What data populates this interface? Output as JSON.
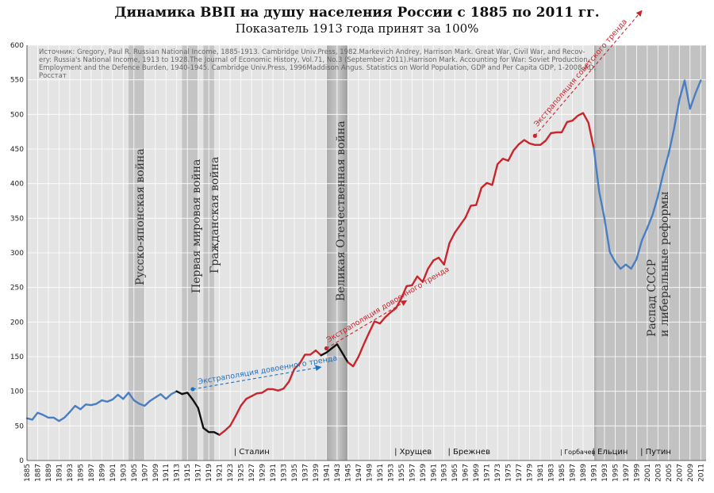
{
  "title": "Динамика ВВП на душу населения России с 1885 по 2011 гг.",
  "subtitle": "Показатель 1913 года принят за 100%",
  "source": {
    "lines": [
      "Источник: Gregory, Paul R. Russian National Income, 1885-1913. Cambridge Univ.Press, 1982.Markevich Andrey, Harrison Mark. Great War, Civil War, and Recov-",
      "ery: Russia's National Income, 1913 to 1928.The Journal of Economic History, Vol.71, No.3 (September 2011).Harrison Mark. Accounting for War: Soviet Production,",
      "Employment and the Defence Burden, 1940-1945. Cambridge Univ.Press, 1996Maddison Angus. Statistics on World Population, GDP and Per Capita GDP, 1-2008 AD,",
      "Росстат"
    ]
  },
  "colors": {
    "plot_bg": "#e4e4e4",
    "band": "#c4c4c4",
    "grid": "#ffffff",
    "blue": "#4a7ec2",
    "black": "#111111",
    "red": "#c8252c",
    "trend_blue": "#1f6fc1",
    "trend_red": "#c8252c"
  },
  "chart_data": {
    "type": "line",
    "title": "Динамика ВВП на душу населения России с 1885 по 2011 гг.",
    "subtitle": "Показатель 1913 года принят за 100%",
    "xlim": [
      1885,
      2011
    ],
    "ylim": [
      0,
      600
    ],
    "yticks": [
      0,
      50,
      100,
      150,
      200,
      250,
      300,
      350,
      400,
      450,
      500,
      550,
      600
    ],
    "xticks_start": 1885,
    "xticks_end": 2011,
    "xticks_step": 2,
    "grid": true,
    "series": [
      {
        "color": "#4a7ec2",
        "points": [
          [
            1885,
            61
          ],
          [
            1886,
            59
          ],
          [
            1887,
            69
          ],
          [
            1888,
            66
          ],
          [
            1889,
            62
          ],
          [
            1890,
            62
          ],
          [
            1891,
            57
          ],
          [
            1892,
            62
          ],
          [
            1893,
            70
          ],
          [
            1894,
            79
          ],
          [
            1895,
            74
          ],
          [
            1896,
            81
          ],
          [
            1897,
            80
          ],
          [
            1898,
            82
          ],
          [
            1899,
            87
          ],
          [
            1900,
            85
          ],
          [
            1901,
            88
          ],
          [
            1902,
            95
          ],
          [
            1903,
            89
          ],
          [
            1904,
            98
          ],
          [
            1905,
            87
          ],
          [
            1906,
            82
          ],
          [
            1907,
            79
          ],
          [
            1908,
            86
          ],
          [
            1909,
            91
          ],
          [
            1910,
            96
          ],
          [
            1911,
            89
          ],
          [
            1912,
            96
          ],
          [
            1913,
            100
          ]
        ]
      },
      {
        "color": "#111111",
        "points": [
          [
            1913,
            100
          ],
          [
            1914,
            96
          ],
          [
            1915,
            98
          ],
          [
            1916,
            88
          ],
          [
            1917,
            76
          ],
          [
            1918,
            47
          ],
          [
            1919,
            41
          ],
          [
            1920,
            41
          ],
          [
            1921,
            37
          ]
        ]
      },
      {
        "color": "#c8252c",
        "points": [
          [
            1921,
            37
          ],
          [
            1922,
            43
          ],
          [
            1923,
            50
          ],
          [
            1924,
            64
          ],
          [
            1925,
            79
          ],
          [
            1926,
            89
          ],
          [
            1927,
            93
          ],
          [
            1928,
            97
          ],
          [
            1929,
            98
          ],
          [
            1930,
            103
          ],
          [
            1931,
            103
          ],
          [
            1932,
            101
          ],
          [
            1933,
            104
          ],
          [
            1934,
            114
          ],
          [
            1935,
            132
          ],
          [
            1936,
            140
          ],
          [
            1937,
            153
          ],
          [
            1938,
            153
          ],
          [
            1939,
            159
          ],
          [
            1940,
            152
          ]
        ]
      },
      {
        "color": "#111111",
        "points": [
          [
            1940,
            152
          ],
          [
            1941,
            156
          ],
          [
            1942,
            162
          ],
          [
            1943,
            168
          ],
          [
            1944,
            155
          ],
          [
            1945,
            142
          ]
        ]
      },
      {
        "color": "#c8252c",
        "points": [
          [
            1945,
            142
          ],
          [
            1946,
            136
          ],
          [
            1947,
            150
          ],
          [
            1948,
            168
          ],
          [
            1949,
            185
          ],
          [
            1950,
            201
          ],
          [
            1951,
            198
          ],
          [
            1952,
            207
          ],
          [
            1953,
            214
          ],
          [
            1954,
            220
          ],
          [
            1955,
            234
          ],
          [
            1956,
            252
          ],
          [
            1957,
            253
          ],
          [
            1958,
            266
          ],
          [
            1959,
            258
          ],
          [
            1960,
            277
          ],
          [
            1961,
            289
          ],
          [
            1962,
            293
          ],
          [
            1963,
            283
          ],
          [
            1964,
            314
          ],
          [
            1965,
            329
          ],
          [
            1966,
            340
          ],
          [
            1967,
            351
          ],
          [
            1968,
            368
          ],
          [
            1969,
            369
          ],
          [
            1970,
            394
          ],
          [
            1971,
            401
          ],
          [
            1972,
            398
          ],
          [
            1973,
            428
          ],
          [
            1974,
            436
          ],
          [
            1975,
            433
          ],
          [
            1976,
            448
          ],
          [
            1977,
            457
          ],
          [
            1978,
            463
          ],
          [
            1979,
            458
          ],
          [
            1980,
            456
          ],
          [
            1981,
            456
          ],
          [
            1982,
            462
          ],
          [
            1983,
            473
          ],
          [
            1984,
            474
          ],
          [
            1985,
            474
          ],
          [
            1986,
            489
          ],
          [
            1987,
            491
          ],
          [
            1988,
            498
          ],
          [
            1989,
            502
          ],
          [
            1990,
            488
          ],
          [
            1991,
            451
          ]
        ]
      },
      {
        "color": "#4a7ec2",
        "points": [
          [
            1991,
            451
          ],
          [
            1992,
            389
          ],
          [
            1993,
            350
          ],
          [
            1994,
            301
          ],
          [
            1995,
            287
          ],
          [
            1996,
            277
          ],
          [
            1997,
            283
          ],
          [
            1998,
            277
          ],
          [
            1999,
            291
          ],
          [
            2000,
            318
          ],
          [
            2001,
            336
          ],
          [
            2002,
            355
          ],
          [
            2003,
            382
          ],
          [
            2004,
            415
          ],
          [
            2005,
            443
          ],
          [
            2006,
            479
          ],
          [
            2007,
            521
          ],
          [
            2008,
            549
          ],
          [
            2009,
            508
          ],
          [
            2010,
            530
          ],
          [
            2011,
            549
          ]
        ]
      }
    ],
    "bands": [
      {
        "from": 1904,
        "to": 1907,
        "label": "Русско-японская война"
      },
      {
        "from": 1914,
        "to": 1917,
        "label": "Первая мировая война"
      },
      {
        "from": 1918,
        "to": 1920,
        "label": "Гражданская война"
      },
      {
        "from": 1941,
        "to": 1945,
        "label": "Великая Отечественная война"
      },
      {
        "from": 1991,
        "to": 2012,
        "label_lines": [
          "Распад СССР",
          "и либеральные реформы"
        ]
      }
    ],
    "leaders": [
      {
        "year": 1924,
        "label": "| Сталин"
      },
      {
        "year": 1954,
        "label": "| Хрущев"
      },
      {
        "year": 1964,
        "label": "| Брежнев"
      },
      {
        "year": 1985,
        "label": "| Горбачев"
      },
      {
        "year": 1991,
        "label": "| Ельцин"
      },
      {
        "year": 2000,
        "label": "| Путин"
      }
    ],
    "trends": [
      {
        "label": "Экстраполяция довоенного тренда",
        "color": "#1f6fc1",
        "from": [
          1916,
          103
        ],
        "to": [
          1940,
          135
        ]
      },
      {
        "label": "Экстраполяция довоенного тренда",
        "color": "#c8252c",
        "from": [
          1941,
          162
        ],
        "to": [
          1956,
          231
        ]
      },
      {
        "label": "Экстраполяция советского тренда",
        "color": "#c8252c",
        "from": [
          1980,
          469
        ],
        "to": [
          2000,
          650
        ]
      }
    ]
  }
}
